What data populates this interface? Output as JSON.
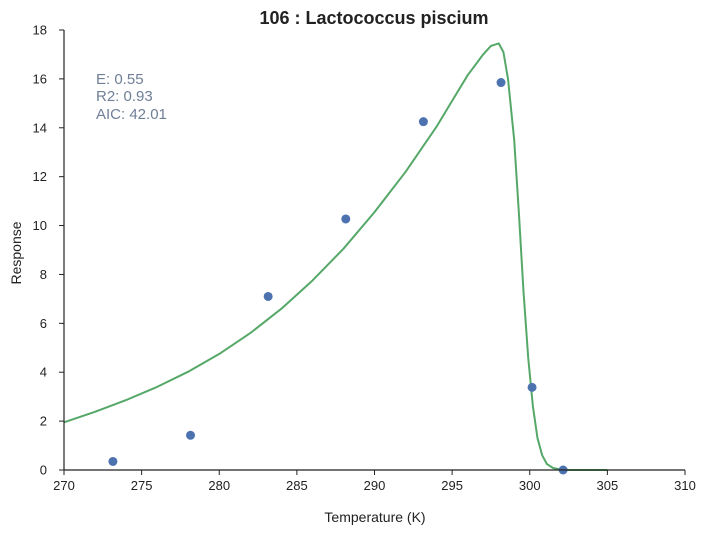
{
  "chart_data": {
    "type": "scatter",
    "title": "106 : Lactococcus piscium",
    "xlabel": "Temperature (K)",
    "ylabel": "Response",
    "xlim": [
      270,
      310
    ],
    "ylim": [
      0,
      18
    ],
    "xticks": [
      270,
      275,
      280,
      285,
      290,
      295,
      300,
      305,
      310
    ],
    "yticks": [
      0,
      2,
      4,
      6,
      8,
      10,
      12,
      14,
      16,
      18
    ],
    "grid": false,
    "points": {
      "x": [
        273.15,
        278.15,
        283.15,
        288.15,
        293.15,
        298.15,
        300.15,
        302.15
      ],
      "y": [
        0.35,
        1.42,
        7.1,
        10.27,
        14.25,
        15.85,
        3.38,
        0.0
      ],
      "color": "#4c72b0"
    },
    "fit_curve": {
      "color": "#55a868",
      "x": [
        270,
        272,
        274,
        276,
        278,
        280,
        282,
        284,
        286,
        288,
        290,
        292,
        294,
        295,
        296,
        297,
        297.5,
        298,
        298.3,
        298.6,
        299,
        299.3,
        299.6,
        299.9,
        300.2,
        300.5,
        300.8,
        301.1,
        301.5,
        302,
        302.5,
        303,
        304,
        305
      ],
      "y": [
        1.95,
        2.38,
        2.86,
        3.4,
        4.02,
        4.75,
        5.6,
        6.6,
        7.75,
        9.05,
        10.55,
        12.2,
        14.05,
        15.1,
        16.15,
        17.0,
        17.35,
        17.45,
        17.1,
        16.0,
        13.5,
        10.5,
        7.3,
        4.6,
        2.6,
        1.3,
        0.6,
        0.25,
        0.08,
        0.02,
        0.0,
        0.0,
        0.0,
        0.0
      ]
    },
    "annotations": [
      "E:  0.55",
      "R2:  0.93",
      "AIC: 42.01"
    ]
  }
}
